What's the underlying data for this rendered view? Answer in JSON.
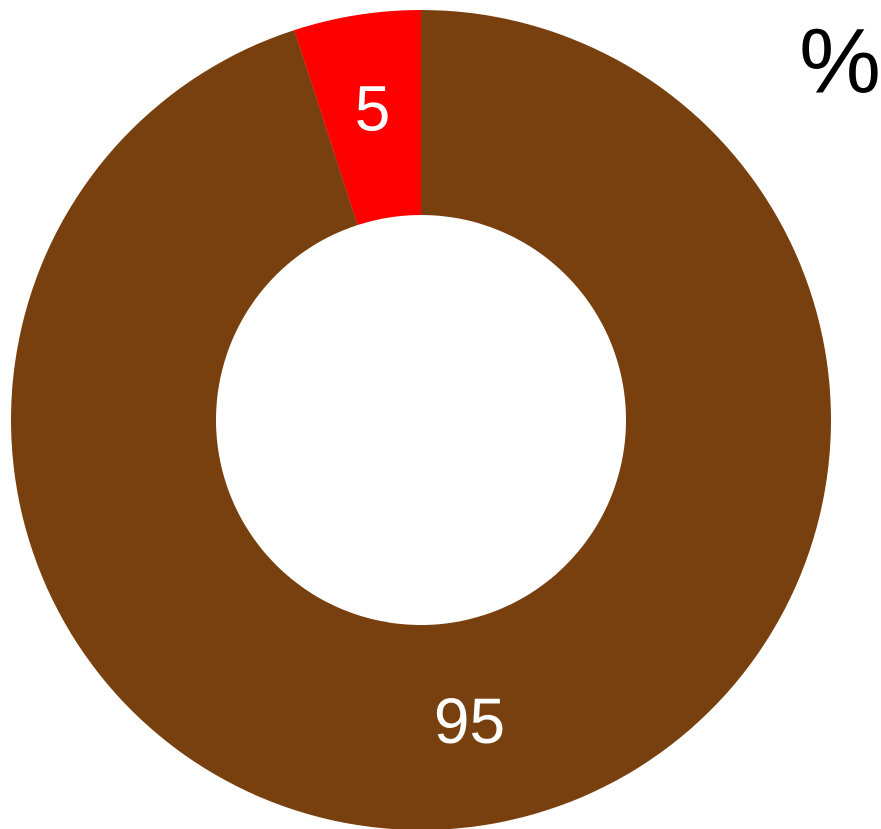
{
  "chart_data": {
    "type": "donut",
    "title": "%",
    "values": [
      95,
      5
    ],
    "colors": [
      "#78400e",
      "#ff0000"
    ]
  }
}
